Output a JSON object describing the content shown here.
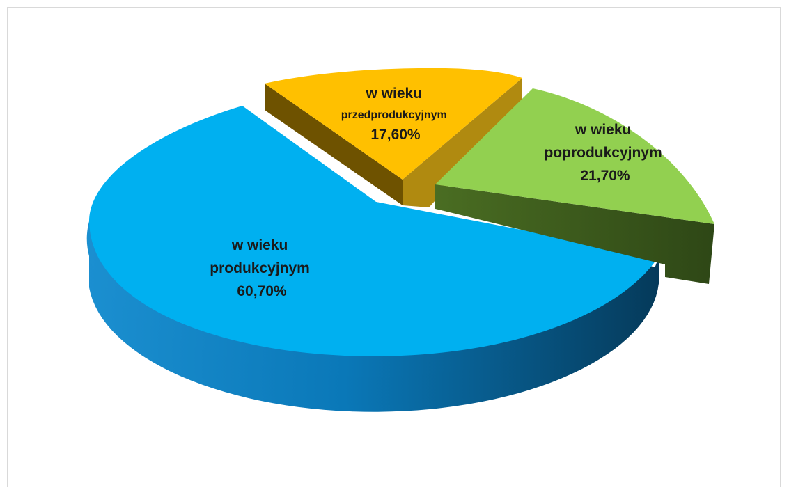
{
  "chart_data": {
    "type": "pie",
    "title": "",
    "legend": "none",
    "slices": [
      {
        "name": "produkcyjnym",
        "label_lines": [
          "w wieku",
          "produkcyjnym",
          "60,70%"
        ],
        "value": 60.7,
        "color": "#00b0f0"
      },
      {
        "name": "przedprodukcyjnym",
        "label_lines": [
          "w wieku",
          "przedprodukcyjnym",
          "17,60%"
        ],
        "value": 17.6,
        "color": "#ffc000"
      },
      {
        "name": "poprodukcyjnym",
        "label_lines": [
          "w wieku",
          "poprodukcyjnym",
          "21,70%"
        ],
        "value": 21.7,
        "color": "#92d050"
      }
    ]
  }
}
